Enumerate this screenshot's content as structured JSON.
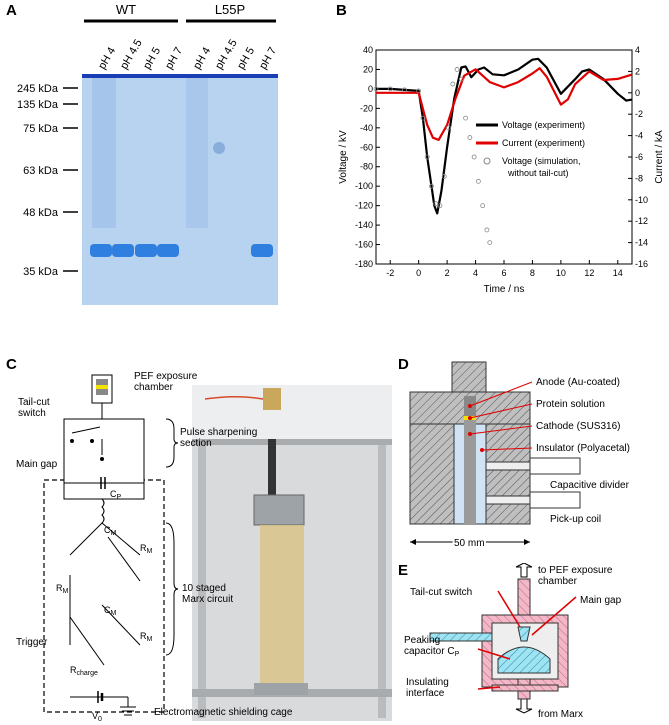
{
  "panels": {
    "a": "A",
    "b": "B",
    "c": "C",
    "d": "D",
    "e": "E"
  },
  "gel": {
    "groups": [
      "WT",
      "L55P"
    ],
    "lanes": [
      "pH 4",
      "pH 4.5",
      "pH 5",
      "pH 7",
      "pH 4",
      "pH 4.5",
      "pH 5",
      "pH 7"
    ],
    "markers": [
      "245 kDa",
      "135 kDa",
      "75 kDa",
      "63 kDa",
      "48 kDa",
      "35 kDa"
    ],
    "colors": {
      "gel": "#b8d3ef",
      "band": "#2f7fe0",
      "top": "#1a3fb5"
    }
  },
  "chart_data": {
    "type": "line",
    "xlabel": "Time / ns",
    "ylabel": "Voltage / kV",
    "y2label": "Current / kA",
    "xlim": [
      -3,
      15
    ],
    "ylim": [
      -180,
      40
    ],
    "y2lim": [
      -16,
      4
    ],
    "xticks": [
      "-2",
      "0",
      "2",
      "4",
      "6",
      "8",
      "10",
      "12",
      "14"
    ],
    "yticks": [
      "40",
      "20",
      "0",
      "-20",
      "-40",
      "-60",
      "-80",
      "-100",
      "-120",
      "-140",
      "-160",
      "-180"
    ],
    "y2ticks": [
      "4",
      "2",
      "0",
      "-2",
      "-4",
      "-6",
      "-8",
      "-10",
      "-12",
      "-14",
      "-16"
    ],
    "legend": [
      "Voltage (experiment)",
      "Current (experiment)",
      "Voltage (simulation,",
      "without tail-cut)"
    ],
    "series": [
      {
        "name": "Voltage (experiment)",
        "color": "#000000",
        "axis": "left",
        "x": [
          -3,
          -2,
          -1,
          0,
          0.3,
          0.6,
          0.9,
          1.1,
          1.3,
          1.6,
          2,
          2.5,
          3,
          3.3,
          3.7,
          4.2,
          4.6,
          5.2,
          6,
          7,
          8,
          8.4,
          9,
          10,
          11,
          11.5,
          12,
          13,
          14,
          14.6,
          15
        ],
        "y": [
          0,
          0,
          -1,
          -2,
          -30,
          -70,
          -100,
          -120,
          -128,
          -105,
          -60,
          -10,
          22,
          23,
          12,
          20,
          22,
          15,
          14,
          20,
          30,
          31,
          22,
          -5,
          10,
          18,
          20,
          10,
          -5,
          -12,
          -11
        ]
      },
      {
        "name": "Current (experiment)",
        "color": "#e00000",
        "axis": "right",
        "x": [
          -3,
          -1,
          0,
          0.3,
          0.6,
          1,
          1.4,
          2,
          2.6,
          3.2,
          4,
          5,
          6,
          7,
          8,
          8.5,
          9,
          10,
          10.5,
          11,
          12,
          13,
          14,
          15
        ],
        "y": [
          0,
          0,
          0,
          -1.5,
          -3,
          -4.2,
          -4.4,
          -3,
          -0.5,
          1.6,
          2.2,
          1,
          0.5,
          1,
          1.8,
          2.3,
          1.5,
          -1.1,
          -0.6,
          0.8,
          2,
          1.2,
          1.3,
          1.7
        ]
      },
      {
        "name": "Voltage (simulation, without tail-cut)",
        "color": "#888888",
        "axis": "left",
        "marker": "circle",
        "x": [
          -3,
          -2,
          -1,
          0,
          0.3,
          0.6,
          0.9,
          1.2,
          1.5,
          1.8,
          2.1,
          2.4,
          2.7,
          3.0,
          3.3,
          3.6,
          3.9,
          4.2,
          4.5,
          4.8,
          5.0
        ],
        "y": [
          0,
          0,
          -1,
          -2,
          -30,
          -70,
          -100,
          -118,
          -120,
          -90,
          -40,
          5,
          20,
          10,
          -30,
          -50,
          -70,
          -95,
          -120,
          -145,
          -158
        ]
      }
    ]
  },
  "circuit": {
    "pef_chamber": [
      "PEF exposure",
      "chamber"
    ],
    "tailcut": [
      "Tail-cut",
      "switch"
    ],
    "maingap": "Main gap",
    "cp": "C",
    "cp_sub": "P",
    "pulse": [
      "Pulse sharpening",
      "section"
    ],
    "cm": "C",
    "cm_sub": "M",
    "rm": "R",
    "rm_sub": "M",
    "marx": [
      "10 staged",
      "Marx circuit"
    ],
    "trigger": "Trigger",
    "rcharge": "R",
    "rcharge_sub": "charge",
    "v0": "V",
    "v0_sub": "0",
    "shield": "Electromagnetic shielding cage"
  },
  "chamber_d": {
    "anode": "Anode (Au-coated)",
    "protein": "Protein solution",
    "cathode": "Cathode (SUS316)",
    "insulator": "Insulator (Polyacetal)",
    "capdiv": "Capacitive divider",
    "pickup": "Pick-up coil",
    "scale": "50 mm"
  },
  "switch_e": {
    "to_pef": [
      "to PEF exposure",
      "chamber"
    ],
    "tailcut": "Tail-cut switch",
    "maingap": "Main gap",
    "peaking": [
      "Peaking",
      "capacitor C"
    ],
    "peaking_sub": "P",
    "insulating": [
      "Insulating",
      "interface"
    ],
    "from_marx": "from Marx"
  }
}
